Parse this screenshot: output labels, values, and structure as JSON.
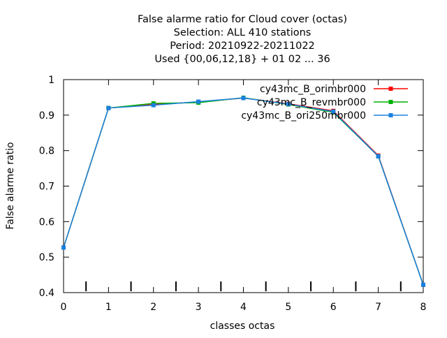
{
  "chart_data": {
    "type": "line",
    "title_lines": [
      "False alarme ratio  for Cloud cover (octas)",
      "Selection: ALL    410 stations",
      "Period: 20210922-20211022",
      "Used {00,06,12,18} + 01 02 ... 36"
    ],
    "xlabel": "classes octas",
    "ylabel": "False alarme ratio",
    "xlim": [
      0,
      8
    ],
    "ylim": [
      0.4,
      1.0
    ],
    "xticks": [
      0,
      1,
      2,
      3,
      4,
      5,
      6,
      7,
      8
    ],
    "yticks": [
      0.4,
      0.5,
      0.6,
      0.7,
      0.8,
      0.9,
      1.0
    ],
    "ytick_labels": [
      "0.4",
      "0.5",
      "0.6",
      "0.7",
      "0.8",
      "0.9",
      "1"
    ],
    "histogram_marks_x": [
      0.5,
      1.5,
      2.5,
      3.5,
      4.5,
      5.5,
      6.5,
      7.5
    ],
    "grid": false,
    "legend_position": "top-right",
    "x": [
      0,
      1,
      2,
      3,
      4,
      5,
      6,
      7,
      8
    ],
    "series": [
      {
        "name": "cy43mc_B_orimbr000",
        "color": "#ff0000",
        "values": [
          0.527,
          0.92,
          0.93,
          0.937,
          0.948,
          0.932,
          0.912,
          0.786,
          0.422
        ]
      },
      {
        "name": "cy43mc_B_revmbr000",
        "color": "#00b000",
        "values": [
          0.527,
          0.92,
          0.933,
          0.935,
          0.949,
          0.93,
          0.908,
          0.784,
          0.422
        ]
      },
      {
        "name": "cy43mc_B_ori250mbr000",
        "color": "#1a80e0",
        "values": [
          0.527,
          0.92,
          0.928,
          0.938,
          0.948,
          0.931,
          0.91,
          0.784,
          0.422
        ]
      }
    ]
  }
}
